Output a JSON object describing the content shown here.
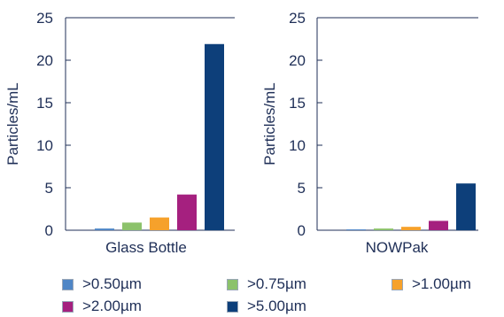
{
  "chart_data": [
    {
      "type": "bar",
      "xlabel": "Glass Bottle",
      "ylabel": "Particles/mL",
      "ylim": [
        0,
        25
      ],
      "yticks": [
        "0",
        "5",
        "10",
        "15",
        "20",
        "25"
      ],
      "categories": [
        ">0.50µm",
        ">0.75µm",
        ">1.00µm",
        ">2.00µm",
        ">5.00µm"
      ],
      "values": [
        0.2,
        0.9,
        1.5,
        4.2,
        21.9
      ]
    },
    {
      "type": "bar",
      "xlabel": "NOWPak",
      "ylabel": "Particles/mL",
      "ylim": [
        0,
        25
      ],
      "yticks": [
        "0",
        "5",
        "10",
        "15",
        "20",
        "25"
      ],
      "categories": [
        ">0.50µm",
        ">0.75µm",
        ">1.00µm",
        ">2.00µm",
        ">5.00µm"
      ],
      "values": [
        0.1,
        0.2,
        0.4,
        1.1,
        5.5
      ]
    }
  ],
  "legend": [
    {
      "label": ">0.50µm",
      "color": "#4f86c6"
    },
    {
      "label": ">0.75µm",
      "color": "#8cc26b"
    },
    {
      "label": ">1.00µm",
      "color": "#f6a12b"
    },
    {
      "label": ">2.00µm",
      "color": "#a5207f"
    },
    {
      "label": ">5.00µm",
      "color": "#0d3f7a"
    }
  ],
  "colors": {
    "axis": "#1f2f57",
    "text": "#1f2f57"
  }
}
